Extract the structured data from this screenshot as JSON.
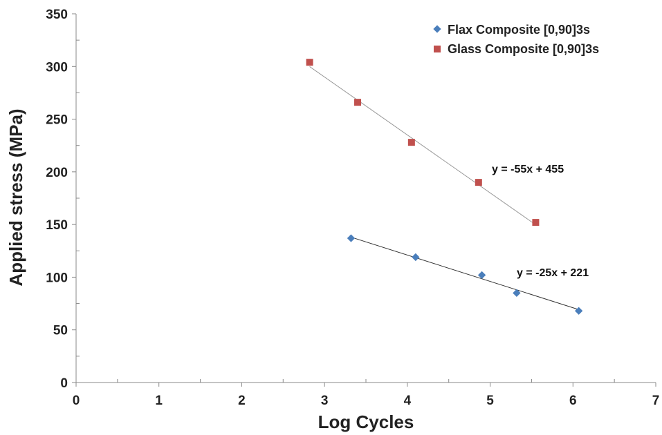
{
  "chart_data": {
    "type": "scatter",
    "xlabel": "Log Cycles",
    "ylabel": "Applied stress (MPa)",
    "xlim": [
      0,
      7
    ],
    "ylim": [
      0,
      350
    ],
    "xticks": [
      0,
      1,
      2,
      3,
      4,
      5,
      6,
      7
    ],
    "yticks": [
      0,
      50,
      100,
      150,
      200,
      250,
      300,
      350
    ],
    "grid": false,
    "legend_position": "top-right",
    "series": [
      {
        "name": "Flax Composite [0,90]3s",
        "marker": "diamond",
        "color": "#4a7ebb",
        "x": [
          3.32,
          4.1,
          4.9,
          5.32,
          6.07
        ],
        "y": [
          137,
          119,
          102,
          85,
          68
        ],
        "trendline": {
          "slope": -25,
          "intercept": 221,
          "x_range": [
            3.32,
            6.07
          ],
          "label": "y = -25x + 221"
        }
      },
      {
        "name": "Glass Composite [0,90]3s",
        "marker": "square",
        "color": "#c0504d",
        "x": [
          2.82,
          3.4,
          4.05,
          4.86,
          5.55
        ],
        "y": [
          304,
          266,
          228,
          190,
          152
        ],
        "trendline": {
          "slope": -55,
          "intercept": 455,
          "x_range": [
            2.82,
            5.55
          ],
          "label": "y = -55x + 455"
        }
      }
    ]
  }
}
